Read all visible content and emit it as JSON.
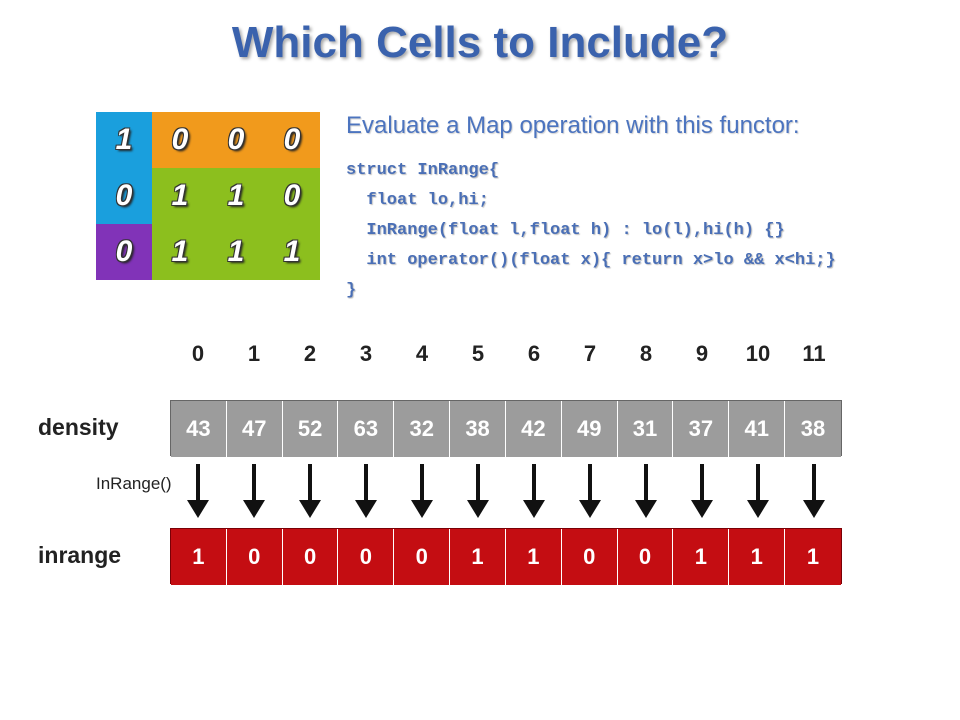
{
  "title": "Which Cells to Include?",
  "grid": {
    "rows": [
      [
        {
          "value": "1",
          "color": "#1a9fdd"
        },
        {
          "value": "0",
          "color": "#f19a1c"
        },
        {
          "value": "0",
          "color": "#f19a1c"
        },
        {
          "value": "0",
          "color": "#f19a1c"
        }
      ],
      [
        {
          "value": "0",
          "color": "#1a9fdd"
        },
        {
          "value": "1",
          "color": "#8cbf1e"
        },
        {
          "value": "1",
          "color": "#8cbf1e"
        },
        {
          "value": "0",
          "color": "#8cbf1e"
        }
      ],
      [
        {
          "value": "0",
          "color": "#8133b8"
        },
        {
          "value": "1",
          "color": "#8cbf1e"
        },
        {
          "value": "1",
          "color": "#8cbf1e"
        },
        {
          "value": "1",
          "color": "#8cbf1e"
        }
      ]
    ]
  },
  "evaluate_text": "Evaluate a Map operation with this functor:",
  "code": {
    "lines": [
      "struct InRange{",
      "  float lo,hi;",
      "  InRange(float l,float h) : lo(l),hi(h) {}",
      "  int operator()(float x){ return x>lo && x<hi;}",
      "}"
    ]
  },
  "indices": [
    "0",
    "1",
    "2",
    "3",
    "4",
    "5",
    "6",
    "7",
    "8",
    "9",
    "10",
    "11"
  ],
  "density": {
    "label": "density",
    "values": [
      "43",
      "47",
      "52",
      "63",
      "32",
      "38",
      "42",
      "49",
      "31",
      "37",
      "41",
      "38"
    ]
  },
  "inrange": {
    "label": "inrange",
    "values": [
      "1",
      "0",
      "0",
      "0",
      "0",
      "1",
      "1",
      "0",
      "0",
      "1",
      "1",
      "1"
    ]
  },
  "function_label": "InRange()",
  "colors": {
    "density_cell": "#9c9c9c",
    "inrange_cell": "#c40d12",
    "title": "#3a62ad",
    "code": "#4a6fb6"
  }
}
